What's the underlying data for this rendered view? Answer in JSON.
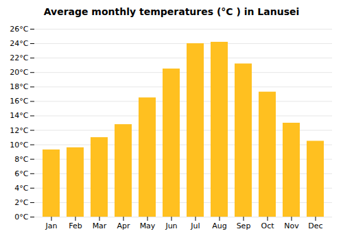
{
  "chart_data": {
    "type": "bar",
    "title": "Average monthly temperatures (°C ) in Lanusei",
    "categories": [
      "Jan",
      "Feb",
      "Mar",
      "Apr",
      "May",
      "Jun",
      "Jul",
      "Aug",
      "Sep",
      "Oct",
      "Nov",
      "Dec"
    ],
    "values": [
      9.3,
      9.6,
      11.0,
      12.8,
      16.5,
      20.5,
      24.0,
      24.2,
      21.2,
      17.3,
      13.0,
      10.5
    ],
    "color": "#FFC020",
    "ylim": [
      0,
      26
    ],
    "yticks": [
      {
        "value": 0,
        "label": "0°C"
      },
      {
        "value": 2,
        "label": "2°C"
      },
      {
        "value": 4,
        "label": "4°C"
      },
      {
        "value": 6,
        "label": "6°C"
      },
      {
        "value": 8,
        "label": "8°C"
      },
      {
        "value": 10,
        "label": "10°C"
      },
      {
        "value": 12,
        "label": "12°C"
      },
      {
        "value": 14,
        "label": "14°C"
      },
      {
        "value": 16,
        "label": "16°C"
      },
      {
        "value": 18,
        "label": "18°C"
      },
      {
        "value": 20,
        "label": "20°C"
      },
      {
        "value": 22,
        "label": "22°C"
      },
      {
        "value": 24,
        "label": "24°C"
      },
      {
        "value": 26,
        "label": "26°C"
      }
    ],
    "grid": true
  }
}
